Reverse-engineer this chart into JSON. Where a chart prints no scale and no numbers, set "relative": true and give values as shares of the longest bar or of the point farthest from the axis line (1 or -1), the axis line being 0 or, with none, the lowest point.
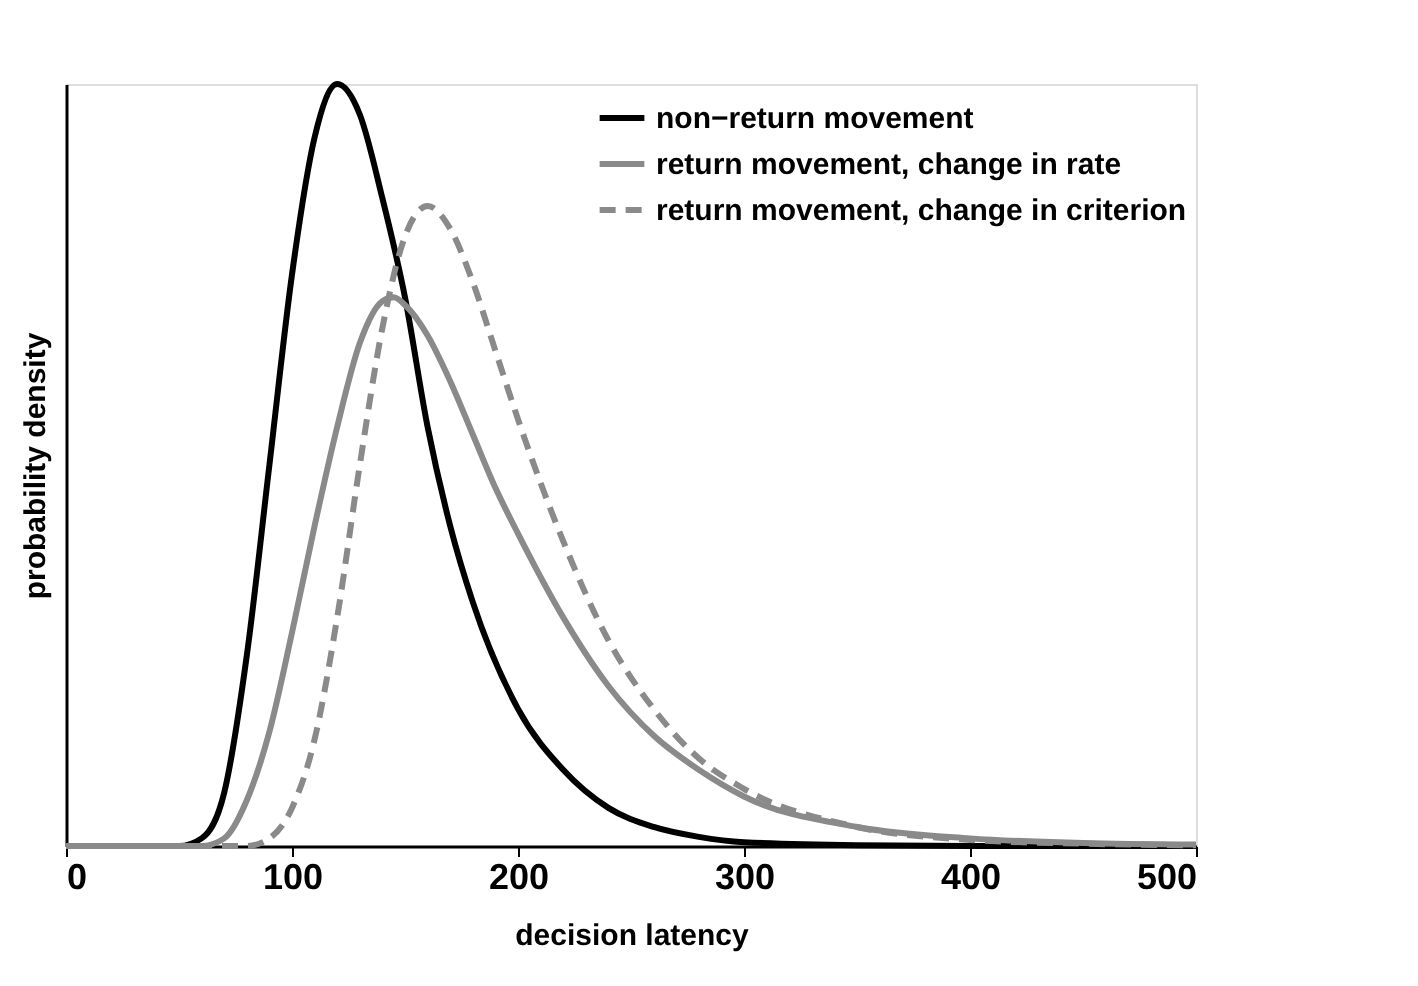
{
  "chart_data": {
    "type": "line",
    "relative": true,
    "xlabel": "decision latency",
    "ylabel": "probability density",
    "xlim": [
      0,
      500
    ],
    "xticks": [
      0,
      100,
      200,
      300,
      400,
      500
    ],
    "grid": false,
    "legend": "top right",
    "marker": "none",
    "series": [
      {
        "name": "non−return movement",
        "color": "#000000",
        "line_style": "solid",
        "x": [
          0,
          50,
          60,
          70,
          80,
          90,
          100,
          110,
          120,
          130,
          140,
          150,
          160,
          170,
          180,
          200,
          220,
          240,
          260,
          280,
          300,
          350,
          400,
          500
        ],
        "values": [
          0,
          0,
          0.01,
          0.07,
          0.25,
          0.5,
          0.75,
          0.93,
          1.0,
          0.96,
          0.85,
          0.72,
          0.55,
          0.42,
          0.32,
          0.18,
          0.1,
          0.05,
          0.025,
          0.012,
          0.005,
          0.001,
          0,
          0
        ]
      },
      {
        "name": "return movement, change in rate",
        "color": "#8a8a8a",
        "line_style": "solid",
        "x": [
          0,
          60,
          70,
          80,
          90,
          100,
          110,
          120,
          130,
          140,
          145,
          150,
          160,
          170,
          180,
          190,
          200,
          220,
          240,
          260,
          280,
          300,
          350,
          400,
          450,
          500
        ],
        "values": [
          0,
          0,
          0.01,
          0.06,
          0.15,
          0.28,
          0.42,
          0.55,
          0.66,
          0.715,
          0.72,
          0.71,
          0.67,
          0.61,
          0.54,
          0.47,
          0.41,
          0.3,
          0.21,
          0.145,
          0.1,
          0.065,
          0.025,
          0.01,
          0.004,
          0.002
        ]
      },
      {
        "name": "return movement, change in criterion",
        "color": "#8a8a8a",
        "line_style": "dashed",
        "x": [
          0,
          80,
          90,
          100,
          110,
          120,
          130,
          140,
          150,
          160,
          170,
          180,
          190,
          200,
          220,
          240,
          260,
          280,
          300,
          350,
          400,
          450,
          500
        ],
        "values": [
          0,
          0,
          0.01,
          0.05,
          0.14,
          0.3,
          0.5,
          0.68,
          0.8,
          0.84,
          0.81,
          0.74,
          0.65,
          0.56,
          0.4,
          0.27,
          0.18,
          0.115,
          0.075,
          0.025,
          0.008,
          0.003,
          0.001
        ]
      }
    ]
  }
}
